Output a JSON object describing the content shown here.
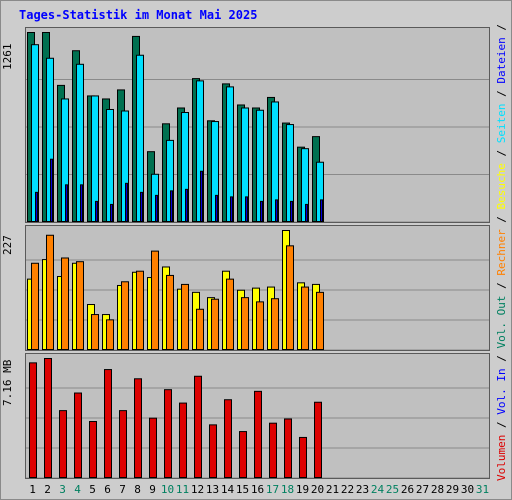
{
  "title": "Tages-Statistik im Monat Mai 2025",
  "panel_max_labels": {
    "requests": "1261",
    "visits": "227",
    "volume": "7.16 MB"
  },
  "legend": [
    {
      "text": "Volumen",
      "color": "#dd0000"
    },
    {
      "text": " / ",
      "color": "#000000"
    },
    {
      "text": "Vol. In",
      "color": "#0000ff"
    },
    {
      "text": " / ",
      "color": "#000000"
    },
    {
      "text": "Vol. Out",
      "color": "#008060"
    },
    {
      "text": " / ",
      "color": "#000000"
    },
    {
      "text": "Rechner",
      "color": "#ff8000"
    },
    {
      "text": " / ",
      "color": "#000000"
    },
    {
      "text": "Besuche",
      "color": "#ffff00"
    },
    {
      "text": " / ",
      "color": "#000000"
    },
    {
      "text": "Seiten",
      "color": "#00e0ff"
    },
    {
      "text": " / ",
      "color": "#000000"
    },
    {
      "text": "Dateien",
      "color": "#0000ff"
    },
    {
      "text": " / ",
      "color": "#000000"
    },
    {
      "text": "Anfragen",
      "color": "#008060"
    }
  ],
  "chart_data": {
    "type": "bar",
    "title": "Tages-Statistik im Monat Mai 2025",
    "categories": [
      "1",
      "2",
      "3",
      "4",
      "5",
      "6",
      "7",
      "8",
      "9",
      "10",
      "11",
      "12",
      "13",
      "14",
      "15",
      "16",
      "17",
      "18",
      "19",
      "20",
      "21",
      "22",
      "23",
      "24",
      "25",
      "26",
      "27",
      "28",
      "29",
      "30",
      "31"
    ],
    "weekend_days": [
      "3",
      "4",
      "10",
      "11",
      "17",
      "18",
      "24",
      "25",
      "31"
    ],
    "colors": {
      "requests": "#007050",
      "files": "#00e0ff",
      "pages": "#0000dd",
      "visits": "#ffff00",
      "hosts": "#ff8000",
      "volume": "#dd0000"
    },
    "panels": [
      {
        "name": "requests-files-pages",
        "ymax": 1261,
        "series": [
          {
            "name": "Anfragen",
            "values": [
              1261,
              1261,
              910,
              1140,
              840,
              820,
              880,
              1235,
              470,
              655,
              760,
              955,
              675,
              920,
              780,
              760,
              830,
              660,
              500,
              570,
              0,
              0,
              0,
              0,
              0,
              0,
              0,
              0,
              0,
              0,
              0
            ]
          },
          {
            "name": "Dateien",
            "values": [
              1180,
              1090,
              820,
              1050,
              840,
              750,
              740,
              1110,
              320,
              545,
              730,
              940,
              670,
              900,
              760,
              745,
              800,
              650,
              490,
              400,
              0,
              0,
              0,
              0,
              0,
              0,
              0,
              0,
              0,
              0,
              0
            ]
          },
          {
            "name": "Seiten",
            "values": [
              200,
              420,
              250,
              250,
              140,
              120,
              260,
              200,
              180,
              210,
              220,
              340,
              180,
              170,
              170,
              140,
              150,
              140,
              120,
              150,
              0,
              0,
              0,
              0,
              0,
              0,
              0,
              0,
              0,
              0,
              0
            ]
          }
        ]
      },
      {
        "name": "visits-hosts",
        "ymax": 227,
        "series": [
          {
            "name": "Besuche",
            "values": [
              135,
              172,
              140,
              165,
              87,
              68,
              123,
              148,
              138,
              158,
              116,
              110,
              100,
              150,
              114,
              118,
              120,
              227,
              128,
              125,
              0,
              0,
              0,
              0,
              0,
              0,
              0,
              0,
              0,
              0,
              0
            ]
          },
          {
            "name": "Rechner",
            "values": [
              165,
              218,
              175,
              168,
              68,
              58,
              130,
              150,
              188,
              142,
              125,
              78,
              97,
              135,
              100,
              92,
              98,
              198,
              120,
              110,
              0,
              0,
              0,
              0,
              0,
              0,
              0,
              0,
              0,
              0,
              0
            ]
          }
        ]
      },
      {
        "name": "volume",
        "ymax": 7.16,
        "series": [
          {
            "name": "Volumen",
            "values": [
              6.9,
              7.16,
              4.05,
              5.1,
              3.4,
              6.5,
              4.05,
              5.95,
              3.6,
              5.3,
              4.5,
              6.1,
              3.2,
              4.7,
              2.8,
              5.2,
              3.3,
              3.55,
              2.45,
              4.55,
              0,
              0,
              0,
              0,
              0,
              0,
              0,
              0,
              0,
              0,
              0
            ]
          }
        ]
      }
    ]
  }
}
